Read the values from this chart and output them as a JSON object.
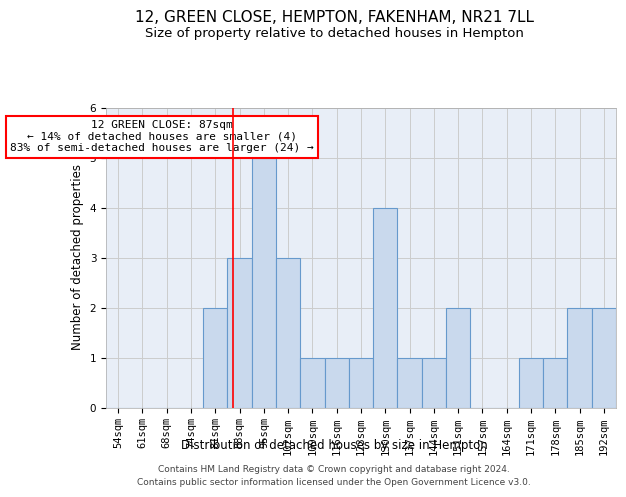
{
  "title": "12, GREEN CLOSE, HEMPTON, FAKENHAM, NR21 7LL",
  "subtitle": "Size of property relative to detached houses in Hempton",
  "xlabel": "Distribution of detached houses by size in Hempton",
  "ylabel": "Number of detached properties",
  "categories": [
    "54sqm",
    "61sqm",
    "68sqm",
    "74sqm",
    "81sqm",
    "88sqm",
    "95sqm",
    "102sqm",
    "109sqm",
    "116sqm",
    "123sqm",
    "130sqm",
    "137sqm",
    "144sqm",
    "151sqm",
    "157sqm",
    "164sqm",
    "171sqm",
    "178sqm",
    "185sqm",
    "192sqm"
  ],
  "values": [
    0,
    0,
    0,
    0,
    2,
    3,
    5,
    3,
    1,
    1,
    1,
    4,
    1,
    1,
    2,
    0,
    0,
    1,
    1,
    2,
    2
  ],
  "bar_color": "#c9d9ed",
  "bar_edgecolor": "#6699cc",
  "bar_linewidth": 0.8,
  "grid_color": "#cccccc",
  "background_color": "#e8eef7",
  "annotation_text": "12 GREEN CLOSE: 87sqm\n← 14% of detached houses are smaller (4)\n83% of semi-detached houses are larger (24) →",
  "annotation_box_color": "white",
  "annotation_box_edgecolor": "red",
  "redline_x": 4.72,
  "ylim": [
    0,
    6
  ],
  "yticks": [
    0,
    1,
    2,
    3,
    4,
    5,
    6
  ],
  "footer_line1": "Contains HM Land Registry data © Crown copyright and database right 2024.",
  "footer_line2": "Contains public sector information licensed under the Open Government Licence v3.0.",
  "title_fontsize": 11,
  "subtitle_fontsize": 9.5,
  "axis_label_fontsize": 8.5,
  "tick_fontsize": 7.5,
  "annotation_fontsize": 8,
  "footer_fontsize": 6.5
}
